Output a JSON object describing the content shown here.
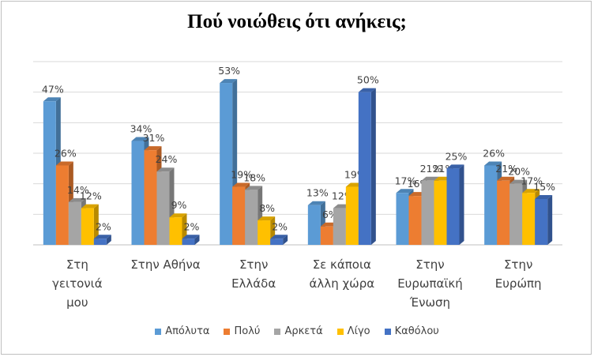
{
  "chart_data": {
    "type": "bar",
    "title": "Πού νοιώθεις ότι ανήκεις;",
    "categories": [
      [
        "Στη",
        "γειτονιά",
        "μου"
      ],
      [
        "Στην Αθήνα"
      ],
      [
        "Στην",
        "Ελλάδα"
      ],
      [
        "Σε κάποια",
        "άλλη χώρα"
      ],
      [
        "Στην",
        "Ευρωπαϊκή",
        "Ένωση"
      ],
      [
        "Στην",
        "Ευρώπη"
      ]
    ],
    "series": [
      {
        "name": "Απόλυτα",
        "color": "#5b9bd5",
        "values": [
          47,
          34,
          53,
          13,
          17,
          26
        ]
      },
      {
        "name": "Πολύ",
        "color": "#ed7d31",
        "values": [
          26,
          31,
          19,
          6,
          16,
          21
        ]
      },
      {
        "name": "Αρκετά",
        "color": "#a5a5a5",
        "values": [
          14,
          24,
          18,
          12,
          21,
          20
        ]
      },
      {
        "name": "Λίγο",
        "color": "#ffc000",
        "values": [
          12,
          9,
          8,
          19,
          21,
          17
        ]
      },
      {
        "name": "Καθόλου",
        "color": "#4472c4",
        "values": [
          2,
          2,
          2,
          50,
          25,
          15
        ]
      }
    ],
    "value_suffix": "%",
    "ylim": [
      0,
      60
    ],
    "grid": true,
    "legend_position": "bottom"
  }
}
